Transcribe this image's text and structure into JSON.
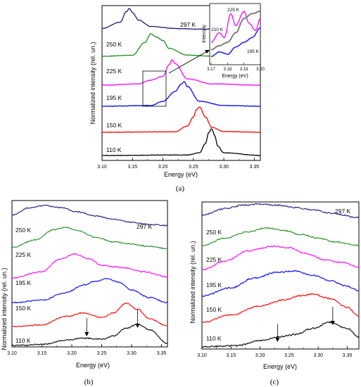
{
  "figure": {
    "panels": [
      {
        "id": "a",
        "caption": "(a)",
        "xlabel": "Energy (eV)",
        "ylabel": "Normalized intensity (rel. un.)",
        "xticks": [
          "3.10",
          "3.15",
          "3.20",
          "3.25",
          "3.30",
          "3.35"
        ],
        "series_labels": [
          "297 K",
          "250 K",
          "225 K",
          "195 K",
          "150 K",
          "110 K"
        ],
        "inset": {
          "xlabel": "Energy (eV)",
          "ylabel": "Intensity",
          "xticks": [
            "3.17",
            "3.18",
            "3.19",
            "3.20"
          ],
          "series_labels": [
            "225 K",
            "210 K",
            "195 K"
          ]
        }
      },
      {
        "id": "b",
        "caption": "(b)",
        "xlabel": "Energy (eV)",
        "ylabel": "Normalized intensity (rel. un.)",
        "xticks": [
          "3.10",
          "3.15",
          "3.20",
          "3.25",
          "3.30",
          "3.35"
        ],
        "series_labels": [
          "297 K",
          "250 K",
          "225 K",
          "195 K",
          "150 K",
          "110 K"
        ]
      },
      {
        "id": "c",
        "caption": "(c)",
        "xlabel": "Energy (eV)",
        "ylabel": "Normalized intensity (rel. un.)",
        "xticks": [
          "3.10",
          "3.15",
          "3.20",
          "3.25",
          "3.30",
          "3.35"
        ],
        "series_labels": [
          "297 K",
          "250 K",
          "225 K",
          "195 K",
          "150 K",
          "110 K"
        ]
      }
    ]
  },
  "chart_data": [
    {
      "type": "line",
      "panel": "a",
      "xlabel": "Energy (eV)",
      "ylabel": "Normalized intensity (rel. un.)",
      "xlim": [
        3.1,
        3.36
      ],
      "colors": [
        "#1a1a7a",
        "#228b22",
        "#ff00ff",
        "#0000ff",
        "#ff0000",
        "#000000"
      ],
      "series": [
        {
          "name": "297 K",
          "x": [
            3.1,
            3.13,
            3.14,
            3.145,
            3.15,
            3.16,
            3.18,
            3.22,
            3.26,
            3.3,
            3.36
          ],
          "y": [
            0.05,
            0.35,
            0.85,
            1.0,
            0.8,
            0.45,
            0.15,
            0.05,
            0.02,
            0.01,
            0.0
          ]
        },
        {
          "name": "250 K",
          "x": [
            3.1,
            3.15,
            3.17,
            3.18,
            3.19,
            3.2,
            3.21,
            3.24,
            3.28,
            3.36
          ],
          "y": [
            0.0,
            0.05,
            0.6,
            1.0,
            0.85,
            0.7,
            0.35,
            0.05,
            0.01,
            0.0
          ]
        },
        {
          "name": "225 K",
          "x": [
            3.1,
            3.16,
            3.18,
            3.2,
            3.21,
            3.215,
            3.22,
            3.24,
            3.28,
            3.36
          ],
          "y": [
            0.0,
            0.05,
            0.2,
            0.35,
            0.8,
            1.0,
            0.85,
            0.25,
            0.05,
            0.0
          ]
        },
        {
          "name": "195 K",
          "x": [
            3.1,
            3.18,
            3.2,
            3.22,
            3.23,
            3.235,
            3.24,
            3.26,
            3.3,
            3.36
          ],
          "y": [
            0.0,
            0.03,
            0.2,
            0.6,
            0.9,
            1.0,
            0.8,
            0.2,
            0.03,
            0.0
          ]
        },
        {
          "name": "150 K",
          "x": [
            3.1,
            3.22,
            3.24,
            3.25,
            3.255,
            3.26,
            3.27,
            3.28,
            3.3,
            3.36
          ],
          "y": [
            0.0,
            0.02,
            0.25,
            0.6,
            0.9,
            1.0,
            0.6,
            0.2,
            0.03,
            0.0
          ]
        },
        {
          "name": "110 K",
          "x": [
            3.1,
            3.24,
            3.26,
            3.27,
            3.275,
            3.28,
            3.285,
            3.29,
            3.3,
            3.36
          ],
          "y": [
            0.0,
            0.02,
            0.1,
            0.45,
            0.85,
            1.0,
            0.75,
            0.35,
            0.1,
            0.0
          ]
        }
      ],
      "inset": {
        "xlabel": "Energy (eV)",
        "ylabel": "Intensity",
        "xlim": [
          3.17,
          3.2
        ],
        "colors": [
          "#ff00ff",
          "#808080",
          "#0000ff"
        ],
        "series": [
          {
            "name": "225 K",
            "x": [
              3.17,
              3.175,
              3.178,
              3.182,
              3.185,
              3.19,
              3.193,
              3.197,
              3.2
            ],
            "y": [
              0.35,
              0.55,
              0.45,
              0.95,
              0.7,
              1.0,
              0.75,
              0.6,
              0.85
            ]
          },
          {
            "name": "210 K",
            "x": [
              3.17,
              3.175,
              3.18,
              3.185,
              3.19,
              3.195,
              3.2
            ],
            "y": [
              0.2,
              0.28,
              0.35,
              0.55,
              0.85,
              0.95,
              1.0
            ]
          },
          {
            "name": "195 K",
            "x": [
              3.17,
              3.175,
              3.18,
              3.185,
              3.19,
              3.195,
              3.2
            ],
            "y": [
              0.05,
              0.15,
              0.1,
              0.25,
              0.35,
              0.45,
              0.65
            ]
          }
        ]
      }
    },
    {
      "type": "line",
      "panel": "b",
      "xlabel": "Energy (eV)",
      "ylabel": "Normalized intensity (rel. un.)",
      "xlim": [
        3.1,
        3.36
      ],
      "colors": [
        "#1a1a7a",
        "#228b22",
        "#ff00ff",
        "#0000ff",
        "#ff0000",
        "#000000"
      ],
      "series": [
        {
          "name": "297 K",
          "x": [
            3.1,
            3.13,
            3.155,
            3.18,
            3.21,
            3.24,
            3.27,
            3.3,
            3.33,
            3.36
          ],
          "y": [
            0.55,
            0.9,
            1.0,
            0.9,
            0.7,
            0.5,
            0.35,
            0.2,
            0.1,
            0.05
          ]
        },
        {
          "name": "250 K",
          "x": [
            3.1,
            3.14,
            3.17,
            3.19,
            3.21,
            3.24,
            3.27,
            3.3,
            3.33,
            3.36
          ],
          "y": [
            0.1,
            0.45,
            0.9,
            1.0,
            0.85,
            0.55,
            0.35,
            0.25,
            0.15,
            0.05
          ]
        },
        {
          "name": "225 K",
          "x": [
            3.1,
            3.15,
            3.18,
            3.205,
            3.23,
            3.25,
            3.27,
            3.29,
            3.32,
            3.36
          ],
          "y": [
            0.05,
            0.3,
            0.8,
            1.0,
            0.8,
            0.55,
            0.5,
            0.45,
            0.3,
            0.1
          ]
        },
        {
          "name": "195 K",
          "x": [
            3.1,
            3.15,
            3.19,
            3.22,
            3.24,
            3.26,
            3.28,
            3.3,
            3.33,
            3.36
          ],
          "y": [
            0.05,
            0.15,
            0.45,
            0.75,
            0.9,
            1.0,
            0.85,
            0.55,
            0.25,
            0.05
          ]
        },
        {
          "name": "150 K",
          "x": [
            3.1,
            3.15,
            3.19,
            3.22,
            3.25,
            3.27,
            3.29,
            3.31,
            3.33,
            3.36
          ],
          "y": [
            0.02,
            0.1,
            0.45,
            0.6,
            0.4,
            0.6,
            1.0,
            0.75,
            0.35,
            0.05
          ]
        },
        {
          "name": "110 K",
          "x": [
            3.1,
            3.15,
            3.19,
            3.22,
            3.25,
            3.27,
            3.29,
            3.31,
            3.33,
            3.36
          ],
          "y": [
            0.0,
            0.05,
            0.25,
            0.35,
            0.3,
            0.45,
            0.8,
            1.0,
            0.75,
            0.1
          ]
        }
      ],
      "annotations": [
        {
          "type": "arrow",
          "x": 3.225,
          "points_to": "110 K"
        },
        {
          "type": "arrow",
          "x": 3.31,
          "points_to": "110 K"
        }
      ]
    },
    {
      "type": "line",
      "panel": "c",
      "xlabel": "Energy (eV)",
      "ylabel": "Normalized intensity (rel. un.)",
      "xlim": [
        3.1,
        3.37
      ],
      "colors": [
        "#1a1a7a",
        "#228b22",
        "#ff00ff",
        "#0000ff",
        "#ff0000",
        "#000000"
      ],
      "series": [
        {
          "name": "297 K",
          "x": [
            3.1,
            3.14,
            3.17,
            3.2,
            3.23,
            3.26,
            3.29,
            3.32,
            3.37
          ],
          "y": [
            0.5,
            0.8,
            0.95,
            1.0,
            0.95,
            0.85,
            0.75,
            0.6,
            0.4
          ]
        },
        {
          "name": "250 K",
          "x": [
            3.1,
            3.14,
            3.18,
            3.21,
            3.24,
            3.27,
            3.3,
            3.33,
            3.37
          ],
          "y": [
            0.3,
            0.6,
            0.85,
            1.0,
            0.9,
            0.75,
            0.6,
            0.45,
            0.3
          ]
        },
        {
          "name": "225 K",
          "x": [
            3.1,
            3.14,
            3.18,
            3.22,
            3.25,
            3.28,
            3.31,
            3.34,
            3.37
          ],
          "y": [
            0.2,
            0.5,
            0.85,
            1.0,
            0.95,
            0.75,
            0.55,
            0.45,
            0.3
          ]
        },
        {
          "name": "195 K",
          "x": [
            3.1,
            3.15,
            3.19,
            3.23,
            3.26,
            3.29,
            3.32,
            3.35,
            3.37
          ],
          "y": [
            0.1,
            0.4,
            0.75,
            0.95,
            1.0,
            0.85,
            0.65,
            0.45,
            0.3
          ]
        },
        {
          "name": "150 K",
          "x": [
            3.1,
            3.15,
            3.2,
            3.24,
            3.27,
            3.29,
            3.32,
            3.35,
            3.37
          ],
          "y": [
            0.05,
            0.3,
            0.6,
            0.8,
            0.95,
            1.0,
            0.85,
            0.55,
            0.25
          ]
        },
        {
          "name": "110 K",
          "x": [
            3.1,
            3.16,
            3.2,
            3.23,
            3.26,
            3.29,
            3.32,
            3.35,
            3.37
          ],
          "y": [
            0.0,
            0.05,
            0.25,
            0.4,
            0.5,
            0.75,
            1.0,
            0.75,
            0.4
          ]
        }
      ],
      "annotations": [
        {
          "type": "arrow",
          "x": 3.23,
          "points_to": "110 K"
        },
        {
          "type": "arrow",
          "x": 3.325,
          "points_to": "110 K"
        }
      ]
    }
  ]
}
